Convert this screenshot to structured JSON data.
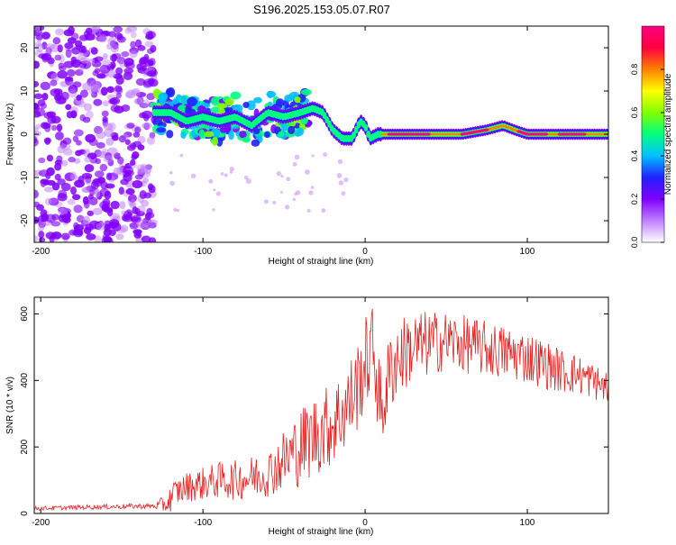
{
  "title": "S196.2025.153.05.07.R07",
  "colors": {
    "snr_line": "#e82020",
    "colormap": [
      "#ffffff",
      "#c080ff",
      "#8000ff",
      "#2020ff",
      "#00c0ff",
      "#00ff80",
      "#80ff00",
      "#ffff00",
      "#ff8000",
      "#ff0040",
      "#ff0080"
    ]
  },
  "chart_data": [
    {
      "type": "heatmap",
      "title": "",
      "xlabel": "Height of straight line (km)",
      "ylabel": "Frequency (Hz)",
      "xlim": [
        -204,
        150
      ],
      "ylim": [
        -25,
        25
      ],
      "xticks": [
        -200,
        -100,
        0,
        100
      ],
      "yticks": [
        -20,
        -10,
        0,
        10,
        20
      ],
      "grid": false,
      "colorbar": {
        "label": "Normalized spectral amplitude",
        "range": [
          0,
          1
        ],
        "ticks": [
          "0.0",
          "0.2",
          "0.4",
          "0.6",
          "0.8"
        ]
      },
      "regions": [
        {
          "x": [
            -204,
            -130
          ],
          "description": "noise",
          "freq": [
            -25,
            25
          ],
          "amplitude": [
            0.05,
            0.35
          ]
        },
        {
          "x": [
            -130,
            -35
          ],
          "description": "scattered signal",
          "freq": [
            -8,
            9
          ],
          "amplitude": [
            0.2,
            0.6
          ]
        },
        {
          "x": [
            10,
            150
          ],
          "description": "coherent carrier",
          "freq": [
            0,
            0
          ],
          "amplitude": [
            0.6,
            1.0
          ]
        }
      ],
      "ridge": [
        [
          -130,
          5
        ],
        [
          -120,
          5
        ],
        [
          -110,
          3
        ],
        [
          -100,
          4
        ],
        [
          -90,
          3
        ],
        [
          -80,
          4
        ],
        [
          -70,
          2
        ],
        [
          -60,
          5
        ],
        [
          -50,
          4
        ],
        [
          -40,
          5
        ],
        [
          -32,
          6
        ],
        [
          -26,
          5
        ],
        [
          -20,
          1
        ],
        [
          -14,
          -1
        ],
        [
          -8,
          -1
        ],
        [
          -3,
          3
        ],
        [
          0,
          2
        ],
        [
          3,
          -1
        ],
        [
          8,
          0
        ],
        [
          20,
          0
        ],
        [
          40,
          0
        ],
        [
          60,
          0
        ],
        [
          75,
          1
        ],
        [
          85,
          2
        ],
        [
          92,
          1
        ],
        [
          100,
          0
        ],
        [
          120,
          0
        ],
        [
          135,
          0
        ],
        [
          150,
          0
        ]
      ]
    },
    {
      "type": "line",
      "title": "",
      "xlabel": "Height of straight line (km)",
      "ylabel": "SNR (10 * v/v)",
      "xlim": [
        -204,
        150
      ],
      "ylim": [
        0,
        650
      ],
      "xticks": [
        -200,
        -100,
        0,
        100
      ],
      "yticks": [
        0,
        200,
        400,
        600
      ],
      "grid": false,
      "series": [
        {
          "points": [
            [
              -204,
              15
            ],
            [
              -180,
              18
            ],
            [
              -160,
              20
            ],
            [
              -140,
              22
            ],
            [
              -130,
              22
            ],
            [
              -122,
              30
            ],
            [
              -118,
              60
            ],
            [
              -110,
              80
            ],
            [
              -100,
              90
            ],
            [
              -90,
              100
            ],
            [
              -80,
              100
            ],
            [
              -70,
              110
            ],
            [
              -60,
              120
            ],
            [
              -50,
              160
            ],
            [
              -40,
              200
            ],
            [
              -30,
              240
            ],
            [
              -20,
              270
            ],
            [
              -10,
              330
            ],
            [
              -5,
              380
            ],
            [
              0,
              450
            ],
            [
              5,
              500
            ],
            [
              10,
              300
            ],
            [
              15,
              420
            ],
            [
              20,
              470
            ],
            [
              30,
              500
            ],
            [
              40,
              510
            ],
            [
              50,
              520
            ],
            [
              60,
              510
            ],
            [
              70,
              500
            ],
            [
              80,
              490
            ],
            [
              90,
              480
            ],
            [
              100,
              470
            ],
            [
              110,
              450
            ],
            [
              120,
              430
            ],
            [
              130,
              420
            ],
            [
              140,
              400
            ],
            [
              150,
              375
            ]
          ],
          "spread": [
            [
              -204,
              6
            ],
            [
              -130,
              8
            ],
            [
              -120,
              40
            ],
            [
              -100,
              50
            ],
            [
              -60,
              70
            ],
            [
              -40,
              120
            ],
            [
              -20,
              130
            ],
            [
              0,
              140
            ],
            [
              20,
              120
            ],
            [
              50,
              90
            ],
            [
              100,
              80
            ],
            [
              150,
              50
            ]
          ]
        }
      ]
    }
  ]
}
